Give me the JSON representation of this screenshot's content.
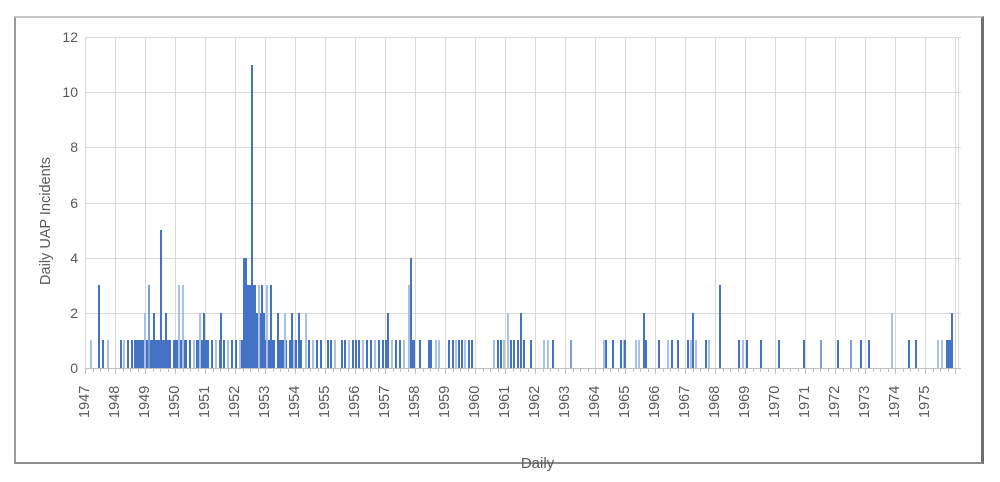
{
  "chart_data": {
    "type": "bar",
    "title": "",
    "xlabel": "Daily",
    "ylabel": "Daily UAP Incidents",
    "ylim": [
      0,
      12
    ],
    "yticks": [
      0,
      2,
      4,
      6,
      8,
      10,
      12
    ],
    "x_domain": [
      1947,
      1976.1
    ],
    "x_year_labels": [
      "1947",
      "1948",
      "1949",
      "1950",
      "1951",
      "1952",
      "1953",
      "1954",
      "1955",
      "1956",
      "1957",
      "1958",
      "1959",
      "1960",
      "1961",
      "1962",
      "1963",
      "1964",
      "1965",
      "1966",
      "1967",
      "1968",
      "1969",
      "1970",
      "1971",
      "1972",
      "1973",
      "1974",
      "1975"
    ],
    "grid": true,
    "legend": "none",
    "colors": {
      "bar_dark": "#4472c4",
      "bar_medium": "#7d9dd6",
      "bar_light": "#a9c1e9",
      "gridline": "#d9d9d9",
      "axis_line": "#bfbfbf",
      "tick": "#bfbfbf",
      "label_text": "#595959"
    },
    "blocks": [
      [
        1948.63,
        1949.27,
        1,
        "d"
      ],
      [
        1949.3,
        1949.87,
        1,
        "d"
      ],
      [
        1949.93,
        1950.4,
        1,
        "d"
      ],
      [
        1950.77,
        1951.13,
        1,
        "d"
      ],
      [
        1952.2,
        1953.33,
        1,
        "d"
      ],
      [
        1952.27,
        1953.0,
        2,
        "d"
      ],
      [
        1952.37,
        1952.7,
        3,
        "d"
      ],
      [
        1952.27,
        1952.4,
        4,
        "d"
      ],
      [
        1953.47,
        1953.73,
        1,
        "d"
      ],
      [
        1957.87,
        1958.0,
        1,
        "d"
      ],
      [
        1975.7,
        1975.9,
        1,
        "d"
      ]
    ],
    "points": [
      [
        1947.17,
        1,
        "l"
      ],
      [
        1947.43,
        3,
        "d"
      ],
      [
        1947.57,
        1,
        "d"
      ],
      [
        1947.73,
        1,
        "l"
      ],
      [
        1948.17,
        1,
        "d"
      ],
      [
        1948.27,
        1,
        "l"
      ],
      [
        1948.4,
        1,
        "d"
      ],
      [
        1948.53,
        1,
        "d"
      ],
      [
        1948.97,
        2,
        "l"
      ],
      [
        1949.1,
        3,
        "m"
      ],
      [
        1949.27,
        2,
        "d"
      ],
      [
        1949.5,
        5,
        "d"
      ],
      [
        1949.67,
        2,
        "d"
      ],
      [
        1950.1,
        3,
        "l"
      ],
      [
        1950.23,
        3,
        "l"
      ],
      [
        1950.47,
        1,
        "d"
      ],
      [
        1950.6,
        1,
        "l"
      ],
      [
        1950.7,
        1,
        "d"
      ],
      [
        1950.8,
        2,
        "l"
      ],
      [
        1950.93,
        2,
        "d"
      ],
      [
        1951.2,
        1,
        "d"
      ],
      [
        1951.33,
        1,
        "l"
      ],
      [
        1951.47,
        1,
        "d"
      ],
      [
        1951.5,
        2,
        "d"
      ],
      [
        1951.6,
        1,
        "d"
      ],
      [
        1951.73,
        1,
        "l"
      ],
      [
        1951.87,
        1,
        "d"
      ],
      [
        1952.0,
        1,
        "d"
      ],
      [
        1952.13,
        1,
        "l"
      ],
      [
        1952.53,
        11,
        "d"
      ],
      [
        1952.77,
        3,
        "l"
      ],
      [
        1952.87,
        3,
        "d"
      ],
      [
        1953.03,
        3,
        "l"
      ],
      [
        1953.17,
        3,
        "d"
      ],
      [
        1953.4,
        2,
        "d"
      ],
      [
        1953.63,
        2,
        "l"
      ],
      [
        1953.8,
        1,
        "d"
      ],
      [
        1953.87,
        2,
        "d"
      ],
      [
        1953.93,
        1,
        "l"
      ],
      [
        1954.0,
        1,
        "d"
      ],
      [
        1954.1,
        2,
        "d"
      ],
      [
        1954.17,
        1,
        "d"
      ],
      [
        1954.33,
        2,
        "l"
      ],
      [
        1954.43,
        1,
        "d"
      ],
      [
        1954.57,
        1,
        "l"
      ],
      [
        1954.7,
        1,
        "d"
      ],
      [
        1954.83,
        1,
        "d"
      ],
      [
        1955.07,
        1,
        "d"
      ],
      [
        1955.17,
        1,
        "d"
      ],
      [
        1955.3,
        1,
        "l"
      ],
      [
        1955.53,
        1,
        "d"
      ],
      [
        1955.63,
        1,
        "d"
      ],
      [
        1955.77,
        1,
        "l"
      ],
      [
        1955.9,
        1,
        "d"
      ],
      [
        1956.0,
        1,
        "d"
      ],
      [
        1956.1,
        1,
        "d"
      ],
      [
        1956.23,
        1,
        "l"
      ],
      [
        1956.37,
        1,
        "d"
      ],
      [
        1956.5,
        1,
        "d"
      ],
      [
        1956.63,
        1,
        "l"
      ],
      [
        1956.77,
        1,
        "d"
      ],
      [
        1956.9,
        1,
        "d"
      ],
      [
        1957.0,
        1,
        "d"
      ],
      [
        1957.07,
        2,
        "d"
      ],
      [
        1957.2,
        1,
        "l"
      ],
      [
        1957.33,
        1,
        "d"
      ],
      [
        1957.47,
        1,
        "d"
      ],
      [
        1957.6,
        1,
        "l"
      ],
      [
        1957.77,
        3,
        "l"
      ],
      [
        1957.83,
        4,
        "d"
      ],
      [
        1958.13,
        1,
        "d"
      ],
      [
        1958.43,
        1,
        "d"
      ],
      [
        1958.5,
        1,
        "d"
      ],
      [
        1958.67,
        1,
        "l"
      ],
      [
        1958.77,
        1,
        "l"
      ],
      [
        1959.1,
        1,
        "d"
      ],
      [
        1959.23,
        1,
        "d"
      ],
      [
        1959.33,
        1,
        "l"
      ],
      [
        1959.43,
        1,
        "d"
      ],
      [
        1959.53,
        1,
        "d"
      ],
      [
        1959.63,
        1,
        "l"
      ],
      [
        1959.77,
        1,
        "d"
      ],
      [
        1959.87,
        1,
        "d"
      ],
      [
        1960.6,
        1,
        "l"
      ],
      [
        1960.73,
        1,
        "d"
      ],
      [
        1960.83,
        1,
        "d"
      ],
      [
        1960.93,
        1,
        "l"
      ],
      [
        1961.07,
        2,
        "l"
      ],
      [
        1961.17,
        1,
        "d"
      ],
      [
        1961.27,
        1,
        "d"
      ],
      [
        1961.4,
        1,
        "d"
      ],
      [
        1961.5,
        2,
        "d"
      ],
      [
        1961.6,
        1,
        "d"
      ],
      [
        1961.83,
        1,
        "d"
      ],
      [
        1962.27,
        1,
        "l"
      ],
      [
        1962.4,
        1,
        "l"
      ],
      [
        1962.57,
        1,
        "d"
      ],
      [
        1963.17,
        1,
        "m"
      ],
      [
        1964.27,
        1,
        "l"
      ],
      [
        1964.33,
        1,
        "d"
      ],
      [
        1964.57,
        1,
        "d"
      ],
      [
        1964.83,
        1,
        "d"
      ],
      [
        1964.93,
        1,
        "l"
      ],
      [
        1964.97,
        1,
        "d"
      ],
      [
        1965.33,
        1,
        "l"
      ],
      [
        1965.43,
        1,
        "l"
      ],
      [
        1965.6,
        2,
        "d"
      ],
      [
        1965.67,
        1,
        "d"
      ],
      [
        1966.1,
        1,
        "d"
      ],
      [
        1966.4,
        1,
        "l"
      ],
      [
        1966.53,
        1,
        "d"
      ],
      [
        1966.73,
        1,
        "d"
      ],
      [
        1967.07,
        1,
        "d"
      ],
      [
        1967.17,
        1,
        "l"
      ],
      [
        1967.23,
        2,
        "d"
      ],
      [
        1967.33,
        1,
        "l"
      ],
      [
        1967.67,
        1,
        "d"
      ],
      [
        1967.77,
        1,
        "l"
      ],
      [
        1968.13,
        3,
        "d"
      ],
      [
        1968.77,
        1,
        "d"
      ],
      [
        1968.9,
        1,
        "l"
      ],
      [
        1969.03,
        1,
        "d"
      ],
      [
        1969.5,
        1,
        "d"
      ],
      [
        1970.1,
        1,
        "d"
      ],
      [
        1970.93,
        1,
        "d"
      ],
      [
        1971.5,
        1,
        "m"
      ],
      [
        1972.07,
        1,
        "d"
      ],
      [
        1972.5,
        1,
        "m"
      ],
      [
        1972.83,
        1,
        "d"
      ],
      [
        1973.1,
        1,
        "d"
      ],
      [
        1973.87,
        2,
        "l"
      ],
      [
        1974.43,
        1,
        "d"
      ],
      [
        1974.67,
        1,
        "d"
      ],
      [
        1975.4,
        1,
        "l"
      ],
      [
        1975.53,
        1,
        "l"
      ],
      [
        1975.87,
        2,
        "d"
      ]
    ]
  }
}
